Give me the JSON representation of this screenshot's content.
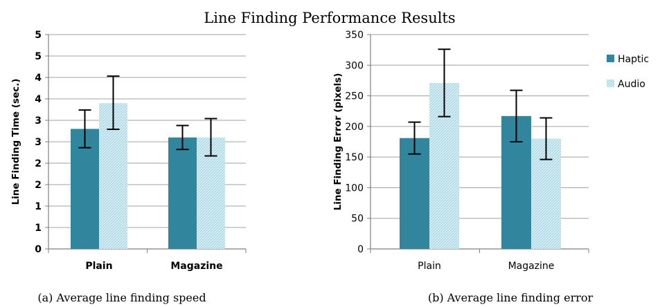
{
  "figure_title": "Line Finding Performance Results",
  "colors": {
    "haptic": "#31859c",
    "audio": "#b7dde8",
    "grid": "#b3b3b3",
    "axis": "#7f7f7f",
    "error": "#000000"
  },
  "chart_data": [
    {
      "type": "bar",
      "caption": "(a) Average line finding speed",
      "categories": [
        "Plain",
        "Magazine"
      ],
      "ylabel": "Line Finding Time (sec.)",
      "xlabel": "",
      "ylim": [
        0,
        5
      ],
      "yticks": [
        "0",
        "1",
        "1",
        "2",
        "2",
        "3",
        "3",
        "4",
        "4",
        "5",
        "5"
      ],
      "ytick_values": [
        0,
        0.5,
        1,
        1.5,
        2,
        2.5,
        3,
        3.5,
        4,
        4.5,
        5
      ],
      "grid": true,
      "series": [
        {
          "name": "Haptic",
          "values": [
            2.8,
            2.6
          ],
          "err_low": [
            2.36,
            2.32
          ],
          "err_high": [
            3.24,
            2.88
          ]
        },
        {
          "name": "Audio",
          "values": [
            3.4,
            2.6
          ],
          "err_low": [
            2.79,
            2.17
          ],
          "err_high": [
            4.03,
            3.04
          ]
        }
      ]
    },
    {
      "type": "bar",
      "caption": "(b) Average line finding error",
      "categories": [
        "Plain",
        "Magazine"
      ],
      "ylabel": "Line Finding Error (pixels)",
      "xlabel": "",
      "ylim": [
        0,
        350
      ],
      "yticks": [
        "0",
        "50",
        "100",
        "150",
        "200",
        "250",
        "300",
        "350"
      ],
      "ytick_values": [
        0,
        50,
        100,
        150,
        200,
        250,
        300,
        350
      ],
      "grid": true,
      "legend": {
        "position": "right",
        "entries": [
          "Haptic",
          "Audio"
        ]
      },
      "series": [
        {
          "name": "Haptic",
          "values": [
            181,
            217
          ],
          "err_low": [
            155,
            175
          ],
          "err_high": [
            207,
            259
          ]
        },
        {
          "name": "Audio",
          "values": [
            271,
            180
          ],
          "err_low": [
            216,
            146
          ],
          "err_high": [
            326,
            214
          ]
        }
      ]
    }
  ]
}
